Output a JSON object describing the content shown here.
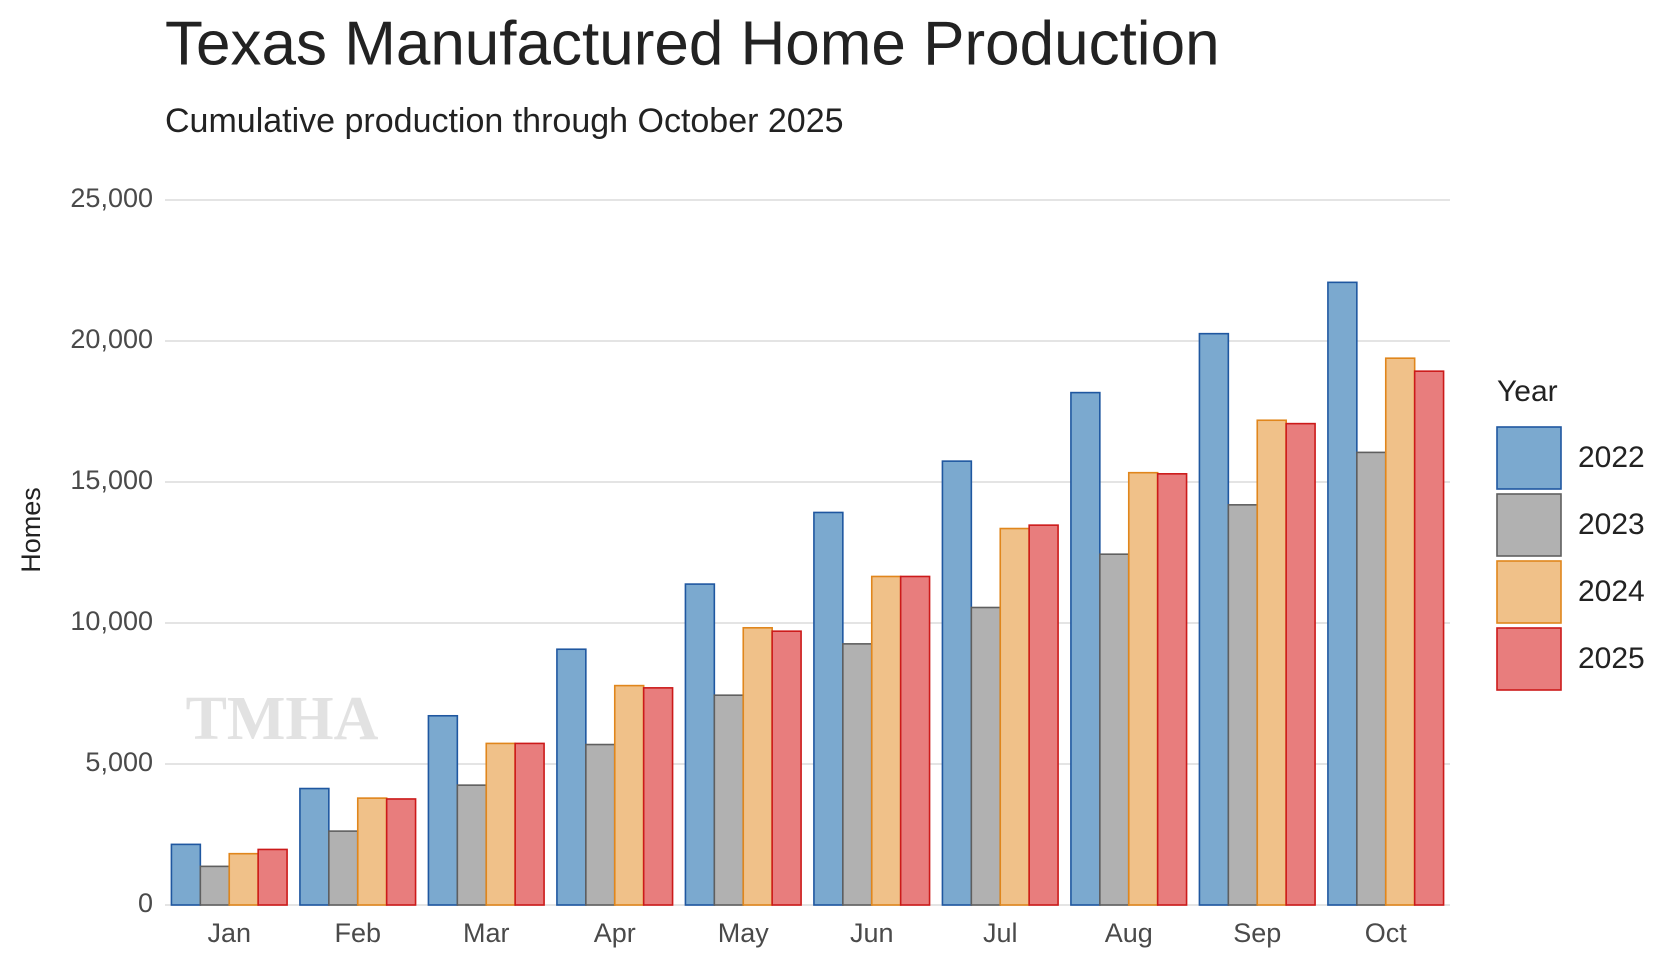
{
  "chart_data": {
    "type": "bar",
    "title": "Texas Manufactured Home Production",
    "subtitle": "Cumulative production through October 2025",
    "y_label": "Homes",
    "legend_title": "Year",
    "watermark": "TMHA",
    "categories": [
      "Jan",
      "Feb",
      "Mar",
      "Apr",
      "May",
      "Jun",
      "Jul",
      "Aug",
      "Sep",
      "Oct"
    ],
    "series": [
      {
        "name": "2022",
        "color": "#7ba9cf",
        "border_color": "#1f57a0",
        "values": [
          2150,
          4130,
          6710,
          9070,
          11380,
          13920,
          15740,
          18170,
          20260,
          22080
        ]
      },
      {
        "name": "2023",
        "color": "#b1b1b1",
        "border_color": "#5f5f5f",
        "values": [
          1370,
          2620,
          4250,
          5690,
          7440,
          9260,
          10550,
          12440,
          14190,
          16050
        ]
      },
      {
        "name": "2024",
        "color": "#f0c189",
        "border_color": "#e0861c",
        "values": [
          1820,
          3790,
          5730,
          7780,
          9830,
          11650,
          13350,
          15330,
          17190,
          19390
        ]
      },
      {
        "name": "2025",
        "color": "#e87d7d",
        "border_color": "#cc1a1a",
        "values": [
          1970,
          3760,
          5730,
          7700,
          9710,
          11650,
          13470,
          15290,
          17070,
          18930
        ]
      }
    ],
    "ylim": [
      0,
      25000
    ],
    "yticks": [
      0,
      {
        "value": 5000,
        "label": "5,000"
      },
      {
        "value": 10000,
        "label": "10,000"
      },
      {
        "value": 15000,
        "label": "15,000"
      },
      {
        "value": 20000,
        "label": "20,000"
      },
      {
        "value": 25000,
        "label": "25,000"
      }
    ],
    "grid": true,
    "legend": "right"
  }
}
